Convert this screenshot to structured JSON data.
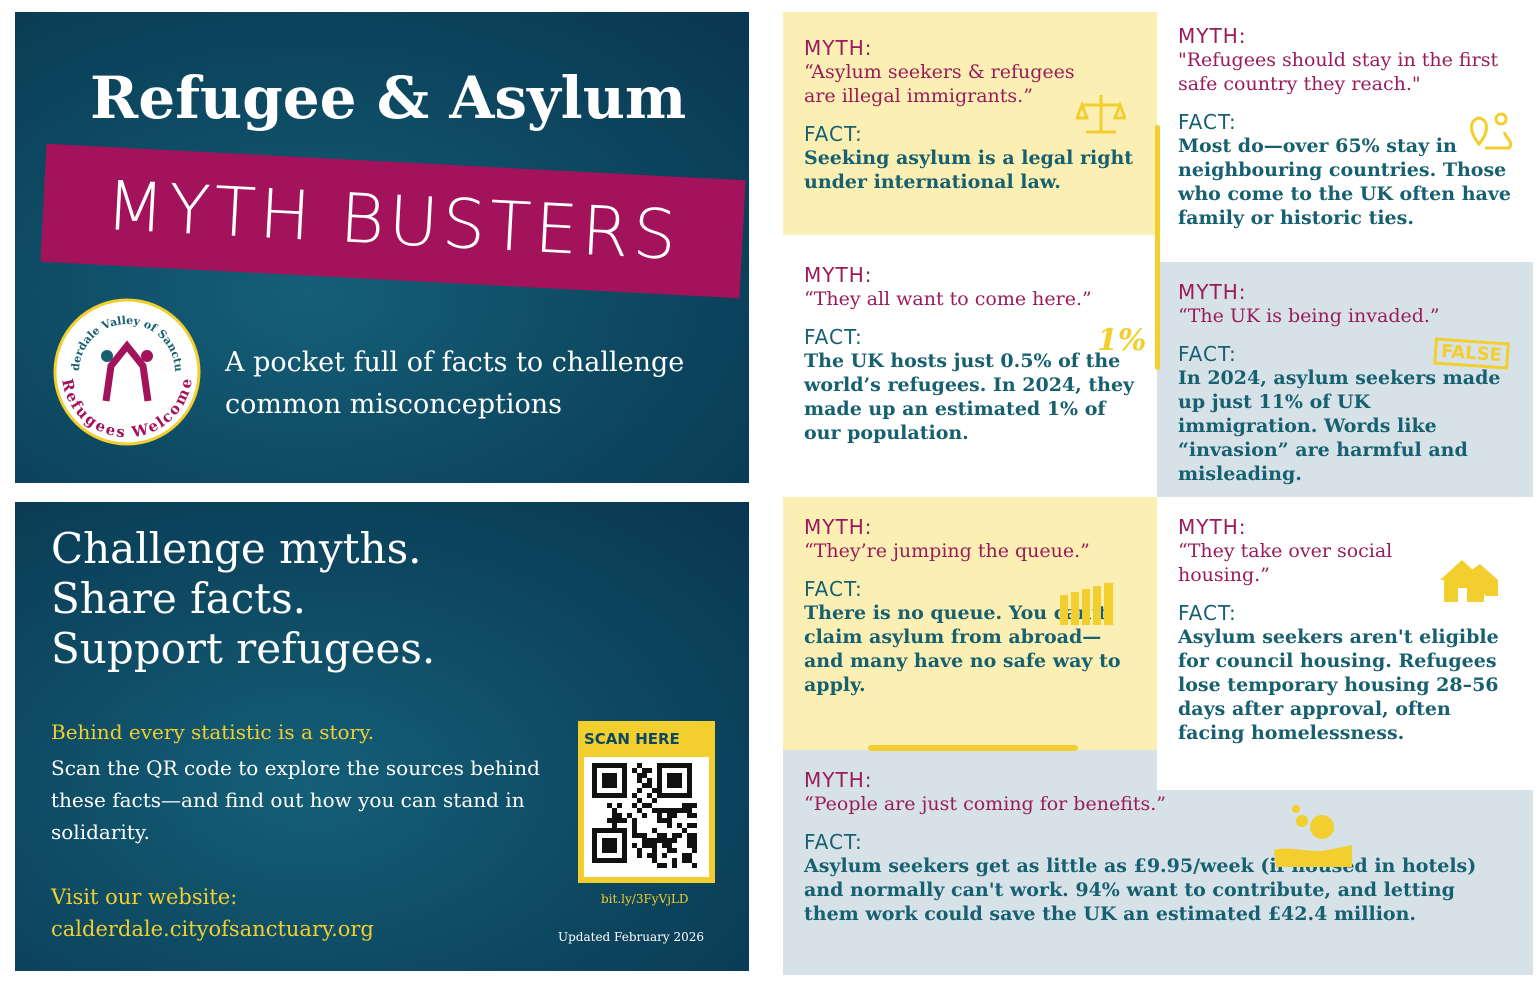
{
  "front": {
    "title": "Refugee & Asylum",
    "banner": "MYTH BUSTERS",
    "logo_top": "Calderdale Valley of Sanctuary",
    "logo_bottom": "Refugees Welcome",
    "tagline": "A pocket full of facts to challenge common misconceptions"
  },
  "back": {
    "headline": [
      "Challenge myths.",
      "Share facts.",
      "Support refugees."
    ],
    "story": "Behind every statistic is a story.",
    "body": "Scan the QR code to explore the sources behind these facts—and find out how you can stand in solidarity.",
    "website_label": "Visit our website:",
    "website": "calderdale.cityofsanctuary.org",
    "scan": "SCAN HERE",
    "short_link": "bit.ly/3FyVjLD",
    "updated": "Updated February 2026"
  },
  "cards": [
    {
      "myth_label": "MYTH:",
      "myth": "“Asylum seekers & refugees are illegal immigrants.”",
      "fact_label": "FACT:",
      "fact": "Seeking asylum is a legal right under international law."
    },
    {
      "myth_label": "MYTH:",
      "myth": "\"Refugees should stay in the first safe country they reach.\"",
      "fact_label": "FACT:",
      "fact": "Most do—over 65% stay in neighbouring countries. Those who come to the UK often have family or historic ties."
    },
    {
      "myth_label": "MYTH:",
      "myth": "“They all want to come here.”",
      "fact_label": "FACT:",
      "fact": "The UK hosts just 0.5% of the world’s refugees. In 2024, they made up an estimated 1% of our population."
    },
    {
      "myth_label": "MYTH:",
      "myth": "“The UK is being invaded.”",
      "fact_label": "FACT:",
      "fact": "In 2024, asylum seekers made up just 11% of UK immigration. Words like “invasion” are harmful and misleading."
    },
    {
      "myth_label": "MYTH:",
      "myth": "“They’re jumping the queue.”",
      "fact_label": "FACT:",
      "fact": "There is no queue. You can’t claim asylum from abroad—and many have no safe way to apply."
    },
    {
      "myth_label": "MYTH:",
      "myth": "“They take over social housing.”",
      "fact_label": "FACT:",
      "fact": "Asylum seekers aren't eligible for council housing. Refugees lose temporary housing 28–56 days after approval, often facing homelessness."
    },
    {
      "myth_label": "MYTH:",
      "myth": "“People are just coming for benefits.”",
      "fact_label": "FACT:",
      "fact": "Asylum seekers get as little as £9.95/week (if housed in hotels) and normally can't work. 94% want to contribute, and letting them work could save the UK an estimated £42.4 million."
    }
  ],
  "badges": {
    "percent": "1%",
    "false": "FALSE"
  }
}
